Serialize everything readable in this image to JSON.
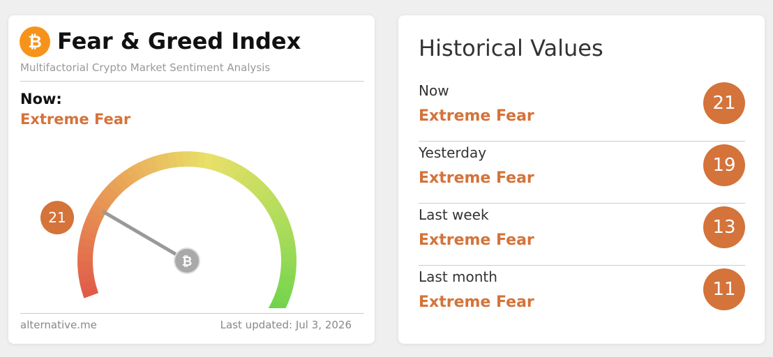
{
  "header": {
    "title": "Fear & Greed Index",
    "subtitle": "Multifactorial Crypto Market Sentiment Analysis"
  },
  "now": {
    "label": "Now:",
    "classification": "Extreme Fear",
    "value": 21
  },
  "gauge": {
    "range": [
      0,
      100
    ]
  },
  "footer": {
    "source": "alternative.me",
    "updated": "Last updated: Jul 3, 2026"
  },
  "historical": {
    "title": "Historical Values",
    "rows": [
      {
        "label": "Now",
        "classification": "Extreme Fear",
        "value": 21
      },
      {
        "label": "Yesterday",
        "classification": "Extreme Fear",
        "value": 19
      },
      {
        "label": "Last week",
        "classification": "Extreme Fear",
        "value": 13
      },
      {
        "label": "Last month",
        "classification": "Extreme Fear",
        "value": 11
      }
    ]
  }
}
